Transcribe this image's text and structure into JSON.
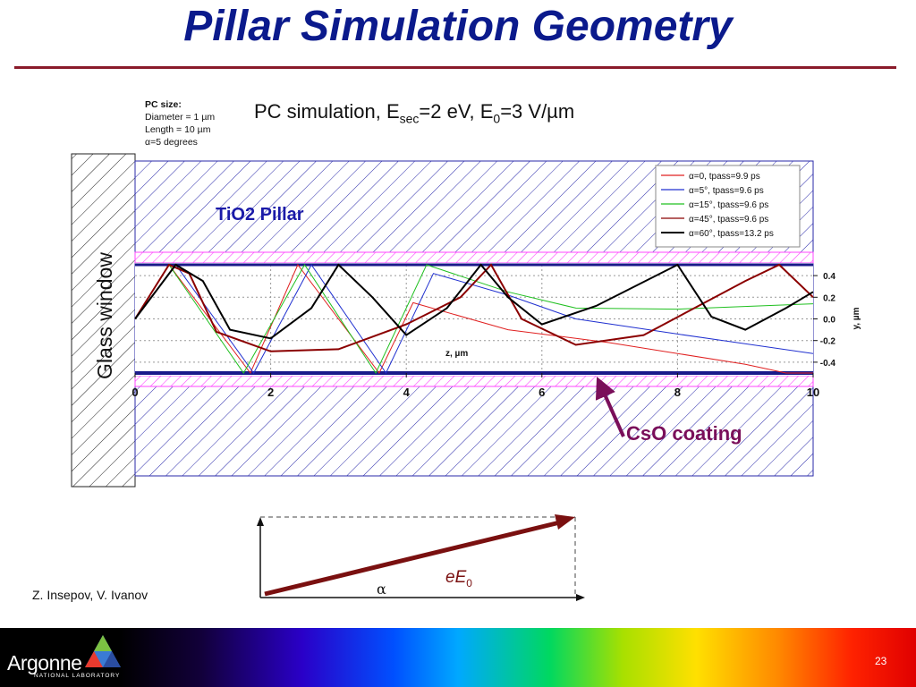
{
  "slide": {
    "title": "Pillar Simulation Geometry",
    "authors": "Z. Insepov, V. Ivanov",
    "page_number": "23"
  },
  "pc_size": {
    "heading": "PC size:",
    "lines": [
      "Diameter = 1 µm",
      "Length = 10 µm",
      "α=5 degrees"
    ]
  },
  "sim_title": {
    "prefix": "PC simulation, E",
    "sub1": "sec",
    "mid": "=2 eV, E",
    "sub2": "0",
    "suffix": "=3 V/µm"
  },
  "diagram_labels": {
    "glass_window": "Glass window",
    "pillar": "TiO2 Pillar",
    "coating": "CsO coating",
    "alpha": "α",
    "field_label": "eE",
    "field_sub": "0"
  },
  "colors": {
    "title": "#0b1a8c",
    "rule": "#8a1a2a",
    "pillar_label": "#1a1aa8",
    "coating_label": "#7a0f5a",
    "arrow": "#7a1010",
    "boundary": "#1a1a8a",
    "hatch": "#2a2aaa",
    "coating_fill": "#ff66ff"
  },
  "logo": {
    "name": "Argonne",
    "subtitle": "NATIONAL LABORATORY"
  },
  "chart_data": {
    "type": "line",
    "xlabel": "z, µm",
    "ylabel": "y, µm",
    "xlim": [
      0,
      10
    ],
    "ylim": [
      -0.5,
      0.5
    ],
    "x_ticks": [
      "0",
      "2",
      "4",
      "6",
      "8",
      "10"
    ],
    "y_ticks": [
      "0.4",
      "0.2",
      "0.0",
      "-0.2",
      "-0.4"
    ],
    "y_tick_values": [
      0.4,
      0.2,
      0.0,
      -0.2,
      -0.4
    ],
    "grid": true,
    "legend_position": "top-right",
    "series": [
      {
        "name": "α=0, tpass=9.9 ps",
        "color": "#e02020",
        "points": [
          [
            0,
            0
          ],
          [
            0.5,
            0.5
          ],
          [
            1.7,
            -0.5
          ],
          [
            2.4,
            0.5
          ],
          [
            3.6,
            -0.5
          ],
          [
            4.1,
            0.15
          ],
          [
            5.5,
            -0.1
          ],
          [
            7,
            -0.22
          ],
          [
            9,
            -0.42
          ],
          [
            9.6,
            -0.5
          ],
          [
            10,
            -0.5
          ]
        ]
      },
      {
        "name": "α=5°, tpass=9.6 ps",
        "color": "#2030d0",
        "points": [
          [
            0,
            0
          ],
          [
            0.6,
            0.5
          ],
          [
            1.75,
            -0.5
          ],
          [
            2.6,
            0.5
          ],
          [
            3.7,
            -0.5
          ],
          [
            4.4,
            0.42
          ],
          [
            5.5,
            0.22
          ],
          [
            6.5,
            0.0
          ],
          [
            8,
            -0.14
          ],
          [
            10,
            -0.32
          ]
        ]
      },
      {
        "name": "α=15°, tpass=9.6 ps",
        "color": "#20c020",
        "points": [
          [
            0,
            0
          ],
          [
            0.5,
            0.5
          ],
          [
            1.6,
            -0.5
          ],
          [
            2.5,
            0.5
          ],
          [
            3.55,
            -0.5
          ],
          [
            4.3,
            0.5
          ],
          [
            5.5,
            0.25
          ],
          [
            6.5,
            0.1
          ],
          [
            8,
            0.09
          ],
          [
            10,
            0.14
          ]
        ]
      },
      {
        "name": "α=45°, tpass=9.6 ps",
        "color": "#8b0000",
        "points": [
          [
            0,
            0
          ],
          [
            0.5,
            0.5
          ],
          [
            0.8,
            0.42
          ],
          [
            1.2,
            -0.12
          ],
          [
            2,
            -0.3
          ],
          [
            3,
            -0.28
          ],
          [
            4,
            -0.05
          ],
          [
            4.8,
            0.2
          ],
          [
            5.25,
            0.5
          ],
          [
            5.7,
            0.0
          ],
          [
            6.5,
            -0.24
          ],
          [
            7.5,
            -0.15
          ],
          [
            9,
            0.35
          ],
          [
            9.5,
            0.5
          ],
          [
            10,
            0.2
          ]
        ]
      },
      {
        "name": "α=60°, tpass=13.2 ps",
        "color": "#000000",
        "points": [
          [
            0,
            0
          ],
          [
            0.6,
            0.5
          ],
          [
            1,
            0.35
          ],
          [
            1.4,
            -0.1
          ],
          [
            2,
            -0.18
          ],
          [
            2.6,
            0.1
          ],
          [
            3,
            0.5
          ],
          [
            3.5,
            0.2
          ],
          [
            4,
            -0.15
          ],
          [
            4.6,
            0.1
          ],
          [
            5.1,
            0.5
          ],
          [
            5.5,
            0.2
          ],
          [
            6,
            -0.05
          ],
          [
            6.8,
            0.12
          ],
          [
            8,
            0.5
          ],
          [
            8.5,
            0.02
          ],
          [
            9,
            -0.1
          ],
          [
            9.6,
            0.1
          ],
          [
            10,
            0.25
          ]
        ]
      }
    ]
  }
}
